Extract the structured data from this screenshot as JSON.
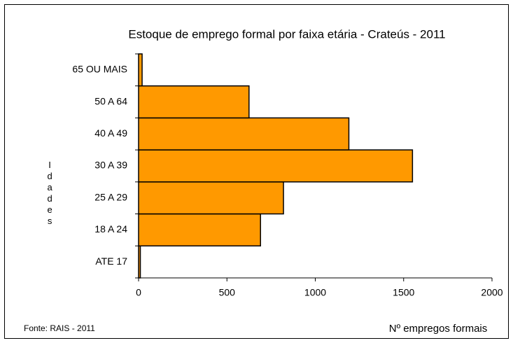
{
  "chart_data": {
    "type": "hbar",
    "title": "Estoque de emprego formal por faixa etária - Crateús - 2011",
    "categories": [
      "ATE 17",
      "18 A 24",
      "25 A 29",
      "30 A 39",
      "40 A 49",
      "50 A 64",
      "65 OU MAIS"
    ],
    "values": [
      10,
      690,
      820,
      1550,
      1190,
      625,
      20
    ],
    "color": "#ff9900",
    "xlim": [
      0,
      2000
    ],
    "xticks": [
      0,
      500,
      1000,
      1500,
      2000
    ],
    "x_label": "Nº empregos formais",
    "y_label": "Idades",
    "source": "Fonte: RAIS - 2011",
    "grid": false
  }
}
